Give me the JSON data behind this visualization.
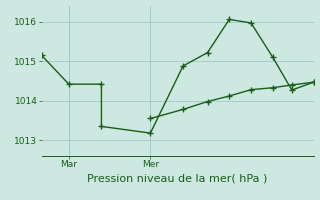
{
  "title": "Pression niveau de la mer( hPa )",
  "bg_color": "#cce8e0",
  "line_color": "#1a5c1a",
  "grid_color": "#aacccc",
  "ylim": [
    1012.6,
    1016.4
  ],
  "yticks": [
    1013,
    1014,
    1015,
    1016
  ],
  "xlim": [
    0,
    10
  ],
  "xtick_positions": [
    1,
    4
  ],
  "xtick_labels": [
    "Mar",
    "Mer"
  ],
  "vline_positions": [
    1,
    4
  ],
  "series1_x": [
    0.0,
    1.0,
    2.2,
    2.2,
    4.0,
    5.2,
    6.1,
    6.9,
    7.7,
    8.5,
    9.2,
    10.0
  ],
  "series1_y": [
    1015.15,
    1014.42,
    1014.42,
    1013.35,
    1013.18,
    1014.88,
    1015.22,
    1016.06,
    1015.97,
    1015.1,
    1014.27,
    1014.47
  ],
  "series2_x": [
    4.0,
    5.2,
    6.1,
    6.9,
    7.7,
    8.5,
    9.2,
    10.0
  ],
  "series2_y": [
    1013.55,
    1013.78,
    1013.98,
    1014.12,
    1014.28,
    1014.33,
    1014.4,
    1014.47
  ],
  "marker": "+",
  "markersize": 4,
  "markeredgewidth": 1.0,
  "linewidth": 1.0,
  "title_fontsize": 8,
  "tick_fontsize": 6.5
}
